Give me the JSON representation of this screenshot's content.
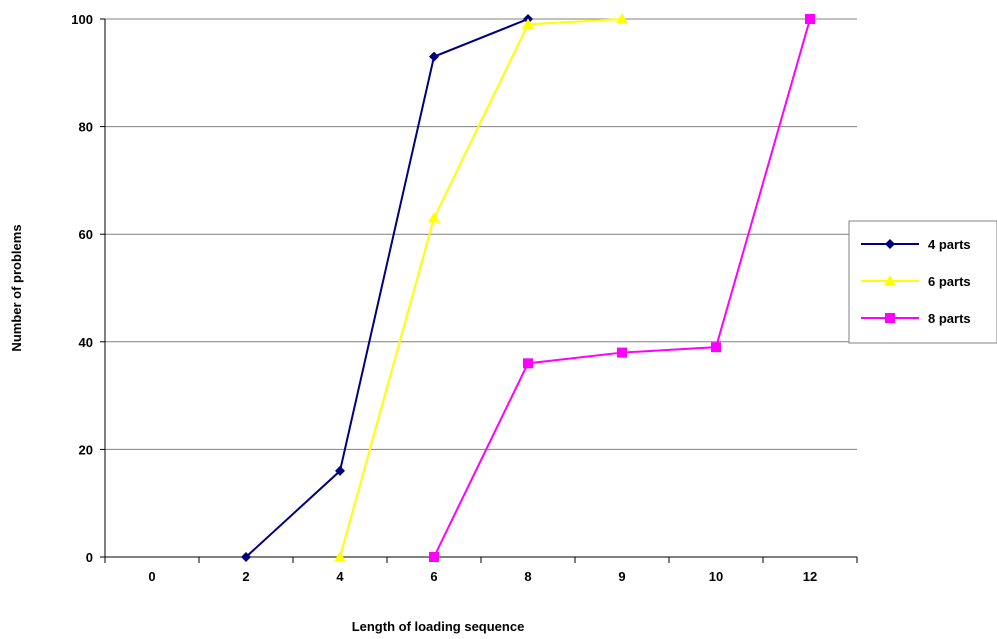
{
  "chart_data": {
    "type": "line",
    "categories": [
      "0",
      "2",
      "4",
      "6",
      "8",
      "9",
      "10",
      "12"
    ],
    "xlabel": "Length of loading sequence",
    "ylabel": "Number of problems",
    "ylim": [
      0,
      100
    ],
    "yticks": [
      0,
      20,
      40,
      60,
      80,
      100
    ],
    "grid": "horizontal",
    "legend_position": "right",
    "series": [
      {
        "name": "4 parts",
        "color": "#000080",
        "marker": "diamond",
        "values": [
          null,
          0,
          16,
          93,
          100,
          null,
          null,
          null
        ]
      },
      {
        "name": "6 parts",
        "color": "#FFFF00",
        "marker": "triangle",
        "values": [
          null,
          null,
          0,
          63,
          99,
          100,
          null,
          null
        ]
      },
      {
        "name": "8 parts",
        "color": "#FF00FF",
        "marker": "square",
        "values": [
          null,
          null,
          null,
          0,
          36,
          38,
          39,
          100
        ]
      }
    ]
  }
}
